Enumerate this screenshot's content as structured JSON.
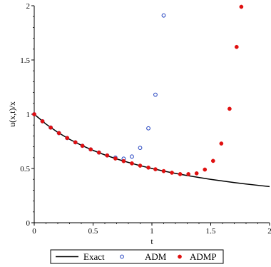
{
  "chart_data": {
    "type": "line",
    "xlabel": "t",
    "ylabel": "u(x,t)/x",
    "xlim": [
      0,
      2
    ],
    "ylim": [
      0,
      2
    ],
    "x_ticks": [
      "0",
      "0.5",
      "1",
      "1.5",
      "2"
    ],
    "y_ticks": [
      "0",
      "0.5",
      "1",
      "1.5",
      "2"
    ],
    "grid": false,
    "legend_position": "bottom",
    "series": [
      {
        "name": "Exact",
        "style": "line",
        "color": "#000000",
        "x": [
          0,
          0.1,
          0.2,
          0.3,
          0.4,
          0.5,
          0.6,
          0.7,
          0.8,
          0.9,
          1.0,
          1.1,
          1.2,
          1.3,
          1.4,
          1.5,
          1.6,
          1.7,
          1.8,
          1.9,
          2.0
        ],
        "y": [
          1.0,
          0.909,
          0.833,
          0.769,
          0.714,
          0.667,
          0.625,
          0.588,
          0.556,
          0.526,
          0.5,
          0.476,
          0.455,
          0.435,
          0.417,
          0.4,
          0.385,
          0.37,
          0.357,
          0.345,
          0.333
        ]
      },
      {
        "name": "ADM",
        "style": "open-circle",
        "color": "#1f3fbf",
        "x": [
          0.0,
          0.07,
          0.14,
          0.21,
          0.28,
          0.35,
          0.41,
          0.48,
          0.55,
          0.62,
          0.69,
          0.76,
          0.83,
          0.9,
          0.97,
          1.03,
          1.1
        ],
        "y": [
          1.0,
          0.935,
          0.877,
          0.826,
          0.781,
          0.741,
          0.709,
          0.676,
          0.647,
          0.62,
          0.6,
          0.59,
          0.61,
          0.69,
          0.87,
          1.18,
          1.91
        ]
      },
      {
        "name": "ADMP",
        "style": "filled-circle",
        "color": "#e01010",
        "x": [
          0.0,
          0.07,
          0.14,
          0.21,
          0.28,
          0.35,
          0.41,
          0.48,
          0.55,
          0.62,
          0.69,
          0.76,
          0.83,
          0.9,
          0.97,
          1.03,
          1.1,
          1.17,
          1.24,
          1.31,
          1.38,
          1.45,
          1.52,
          1.59,
          1.66,
          1.72,
          1.76
        ],
        "y": [
          1.0,
          0.935,
          0.877,
          0.826,
          0.781,
          0.741,
          0.709,
          0.676,
          0.647,
          0.62,
          0.592,
          0.568,
          0.547,
          0.526,
          0.508,
          0.493,
          0.476,
          0.461,
          0.448,
          0.448,
          0.455,
          0.49,
          0.57,
          0.73,
          1.05,
          1.62,
          1.99
        ]
      }
    ]
  }
}
